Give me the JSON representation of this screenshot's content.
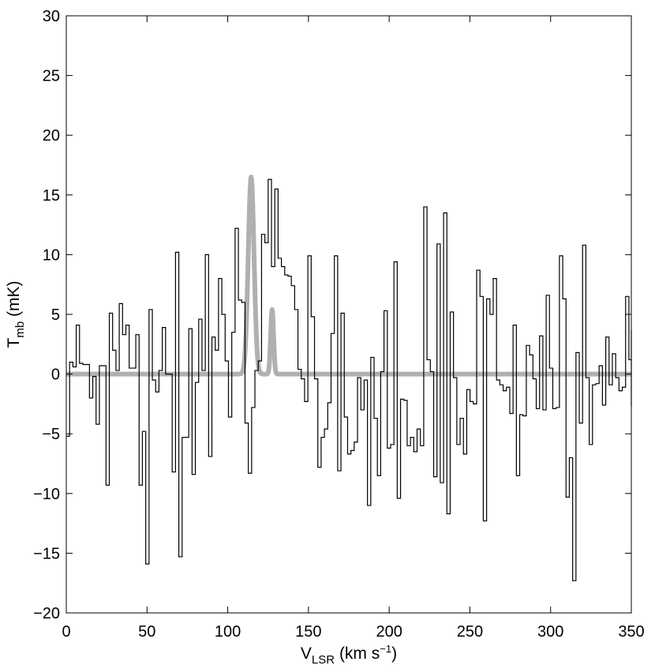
{
  "chart_data": {
    "type": "line",
    "xlabel": {
      "main": "V",
      "sub": "LSR",
      "unit_pre": " (km s",
      "unit_sup": "−1",
      "unit_post": ")"
    },
    "ylabel": {
      "main": "T",
      "sub": "mb",
      "unit": " (mK)"
    },
    "xlim": [
      0,
      350
    ],
    "ylim": [
      -20,
      30
    ],
    "xticks": [
      0,
      50,
      100,
      150,
      200,
      250,
      300,
      350
    ],
    "xtick_labels": [
      "0",
      "50",
      "100",
      "150",
      "200",
      "250",
      "300",
      "350"
    ],
    "yticks": [
      -20,
      -15,
      -10,
      -5,
      0,
      5,
      10,
      15,
      20,
      25,
      30
    ],
    "ytick_labels": [
      "−20",
      "−15",
      "−10",
      "−5",
      "0",
      "5",
      "10",
      "15",
      "20",
      "25",
      "30"
    ],
    "grid": false,
    "colors": {
      "spectrum": "#000000",
      "fit": "#b0b0b0",
      "axes": "#000000"
    },
    "series": [
      {
        "style": "step",
        "bin_width": 2.05,
        "x_start": 0,
        "values": [
          -5.2,
          1.0,
          0.6,
          4.1,
          0.9,
          0.8,
          0.8,
          -2.0,
          -0.2,
          -4.2,
          0.7,
          0.7,
          -9.3,
          5.1,
          2.0,
          0.3,
          5.9,
          3.3,
          4.1,
          0.5,
          0.5,
          3.3,
          -9.3,
          -4.8,
          -15.9,
          5.4,
          -0.5,
          -1.5,
          0.3,
          3.9,
          0.0,
          0.0,
          -8.2,
          10.2,
          -15.3,
          -5.3,
          -5.3,
          3.8,
          -8.4,
          -0.7,
          4.6,
          0.3,
          10.0,
          -6.9,
          3.1,
          2.0,
          8.0,
          5.0,
          1.1,
          -3.6,
          3.5,
          12.2,
          6.2,
          6.0,
          -4.1,
          -8.3,
          -2.8,
          0.3,
          1.1,
          11.7,
          11.0,
          16.3,
          9.0,
          15.5,
          9.7,
          9.0,
          8.3,
          8.2,
          7.4,
          5.4,
          0.4,
          -0.4,
          -2.3,
          9.9,
          4.8,
          -0.4,
          -7.8,
          -5.3,
          -4.6,
          -2.4,
          3.4,
          9.9,
          -8.1,
          5.1,
          -3.6,
          -6.7,
          -6.4,
          -5.7,
          -0.3,
          -3.0,
          -0.5,
          -11.0,
          1.4,
          -3.7,
          -8.5,
          0.2,
          5.3,
          -6.2,
          -5.9,
          9.4,
          -10.4,
          -2.1,
          -2.2,
          -6.0,
          -5.3,
          -6.5,
          -4.6,
          -6.0,
          14.0,
          1.2,
          0.2,
          -8.6,
          10.9,
          -9.1,
          13.5,
          -11.7,
          5.2,
          -0.3,
          -5.9,
          -3.7,
          -6.7,
          -1.3,
          -2.3,
          -2.5,
          8.7,
          6.5,
          -12.3,
          6.3,
          5.0,
          8.0,
          -0.5,
          -0.9,
          -1.4,
          -1.1,
          -3.3,
          4.1,
          -8.5,
          -3.4,
          -3.5,
          2.4,
          1.6,
          -0.4,
          -2.9,
          3.2,
          -3.0,
          6.6,
          0.5,
          -2.9,
          -2.8,
          9.9,
          6.3,
          -10.3,
          -7.0,
          -17.3,
          1.8,
          -4.1,
          10.8,
          -0.3,
          -5.9,
          -0.9,
          -0.8,
          0.7,
          -2.6,
          3.1,
          -0.9,
          1.7,
          -0.3,
          -1.4,
          -1.1,
          6.5,
          1.2,
          3.7,
          -2.7
        ]
      },
      {
        "style": "gaussian-fit",
        "baseline": 0,
        "components": [
          {
            "amplitude": 16.5,
            "center": 114.5,
            "sigma": 1.8
          },
          {
            "amplitude": 5.4,
            "center": 127.5,
            "sigma": 0.9
          }
        ]
      }
    ]
  }
}
